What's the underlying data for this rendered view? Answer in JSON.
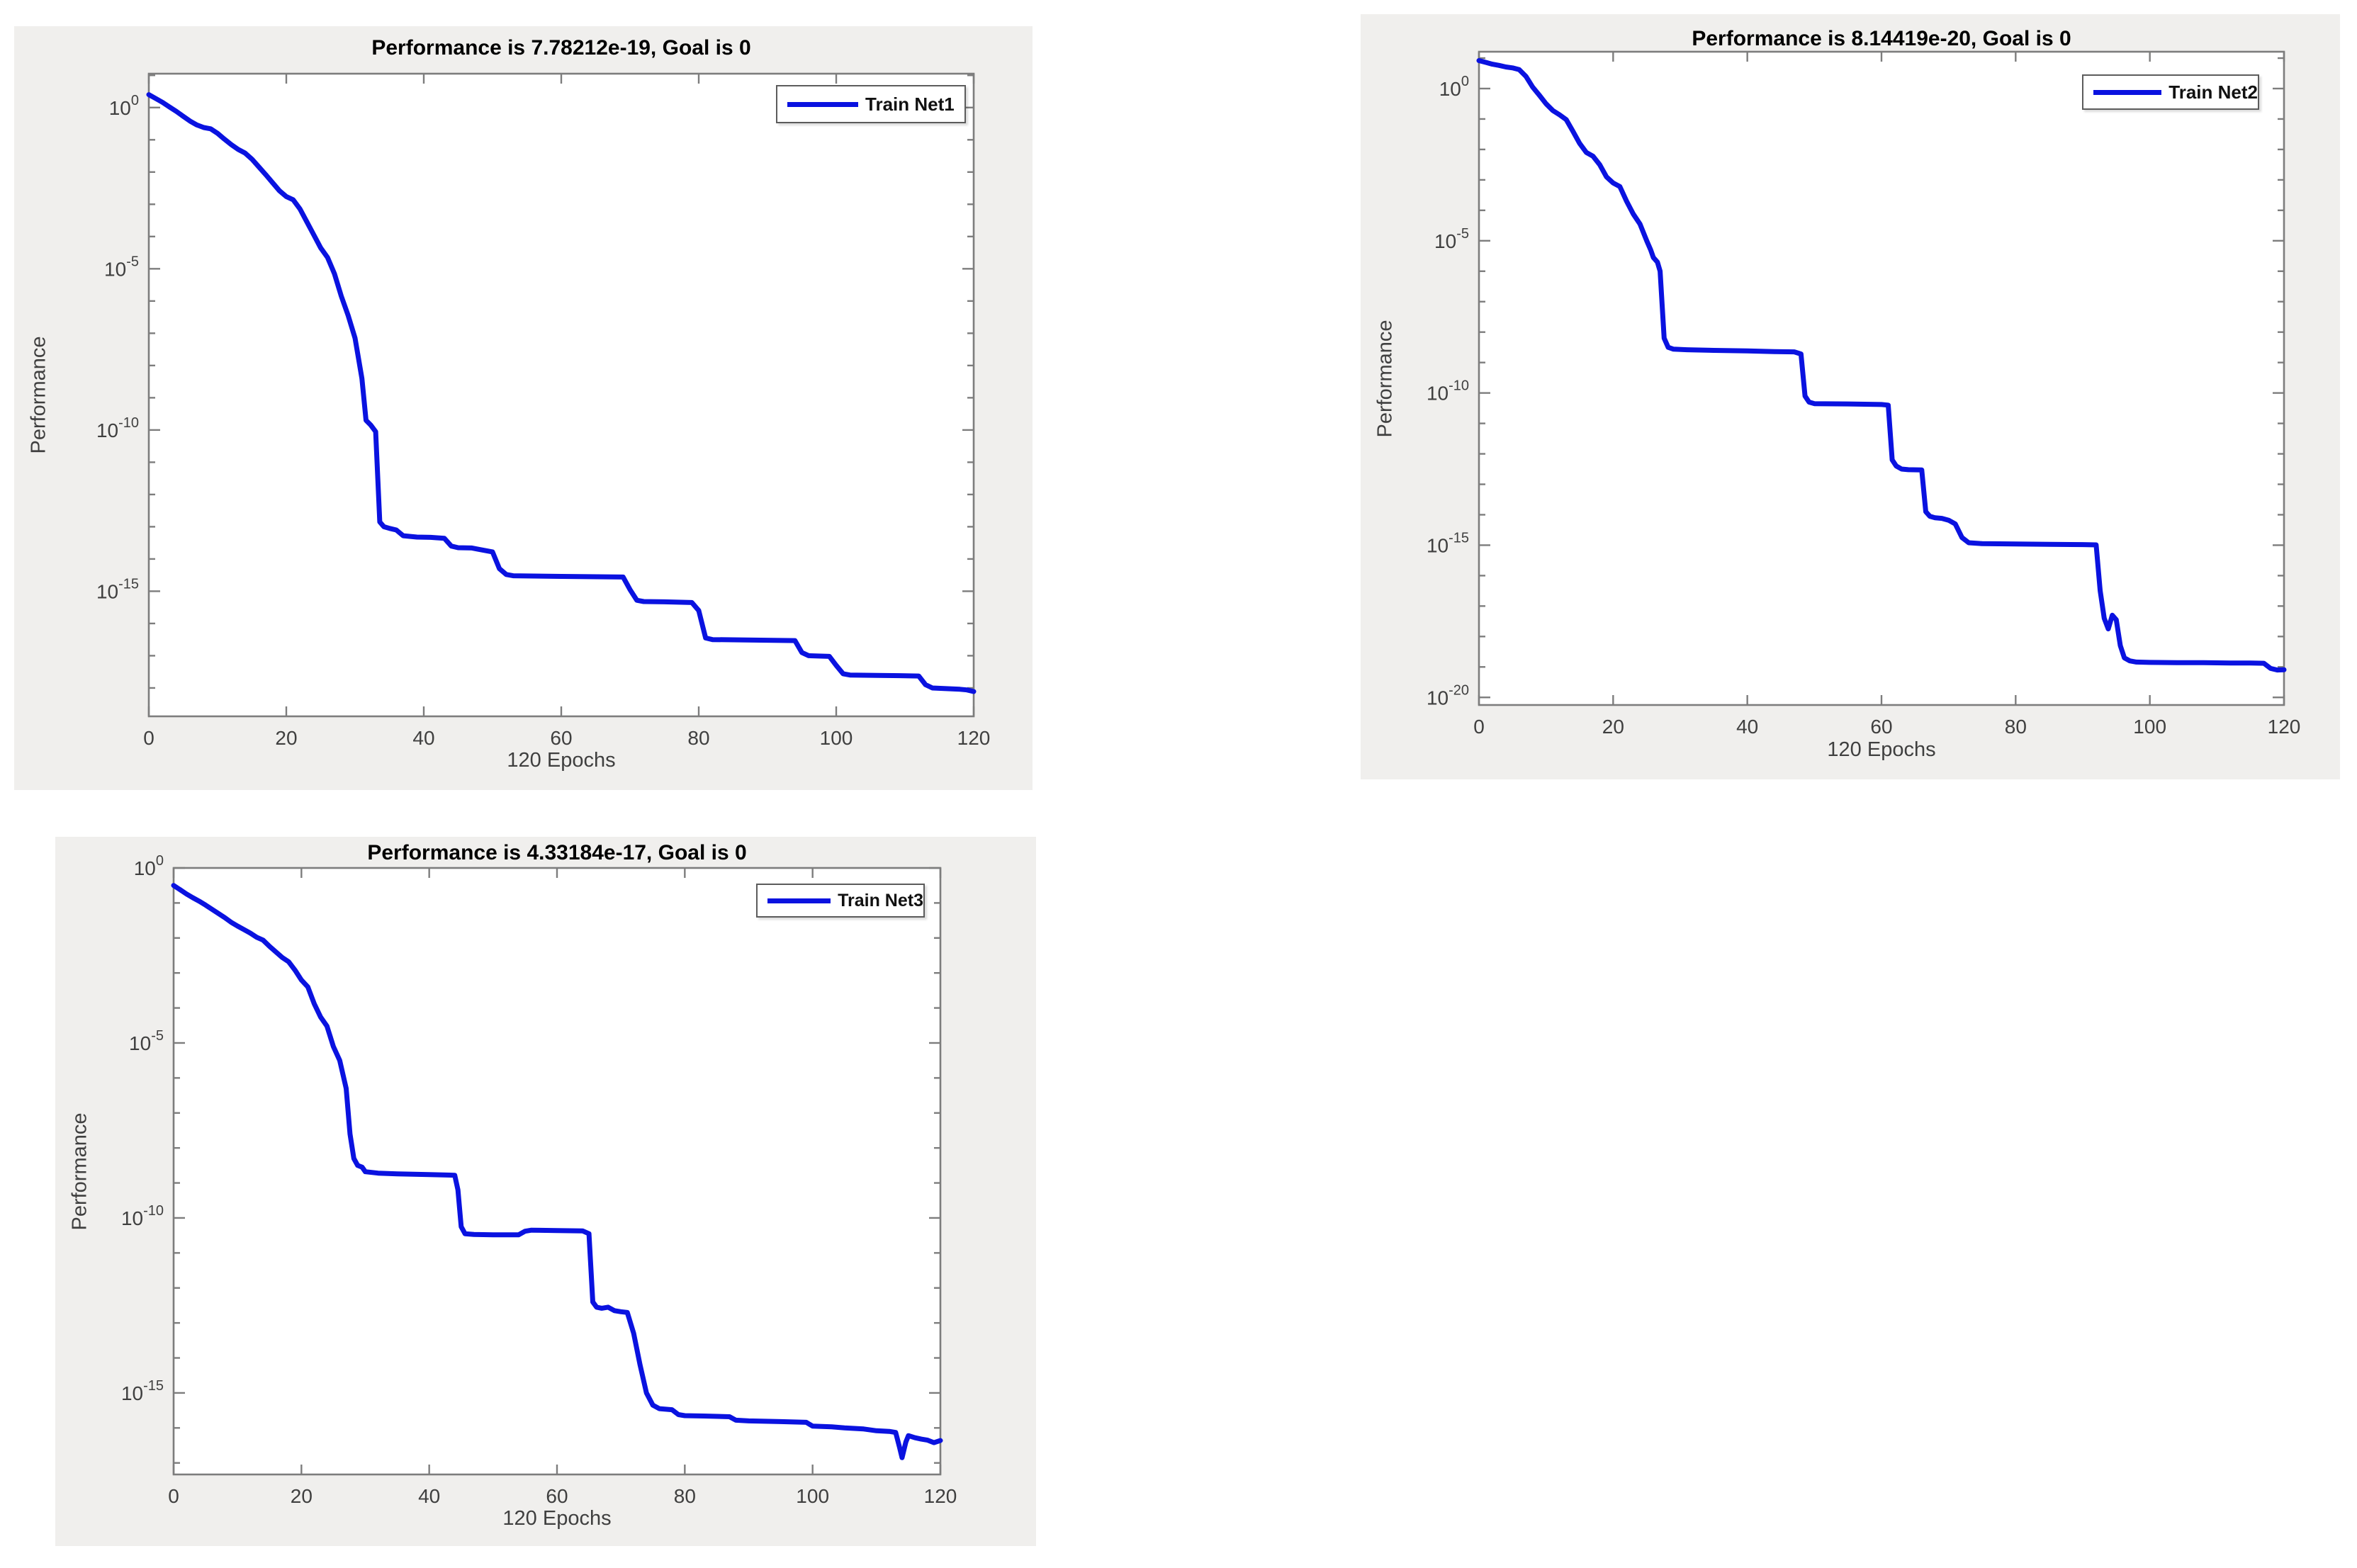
{
  "figure": {
    "background": "#ffffff",
    "panel_background": "#f0efed",
    "plot_background": "#ffffff",
    "axis_color": "#7d7d7d",
    "tick_label_color": "#3f3f3f",
    "title_color": "#000000"
  },
  "chart_data": [
    {
      "type": "line",
      "title": "Performance is 7.78212e-19, Goal is 0",
      "final_performance": "7.78212e-19",
      "goal": "0",
      "legend": "Train Net1",
      "legend_position": "top-right-inside",
      "xlabel": "120 Epochs",
      "ylabel": "Performance",
      "x_range": [
        0,
        120
      ],
      "x_ticks": [
        0,
        20,
        40,
        60,
        80,
        100,
        120
      ],
      "y_scale": "log10",
      "y_tick_exponents": [
        0,
        -5,
        -10,
        -15
      ],
      "y_top_exponent": 1.05,
      "y_bottom_exponent": -18.88,
      "grid": false,
      "line_color": "#0a12e0",
      "series_log10": [
        [
          0,
          0.4
        ],
        [
          1,
          0.28
        ],
        [
          2,
          0.16
        ],
        [
          3,
          0.02
        ],
        [
          4,
          -0.12
        ],
        [
          5,
          -0.27
        ],
        [
          6,
          -0.42
        ],
        [
          7,
          -0.54
        ],
        [
          8,
          -0.62
        ],
        [
          9,
          -0.66
        ],
        [
          10,
          -0.8
        ],
        [
          11,
          -0.98
        ],
        [
          12,
          -1.15
        ],
        [
          13,
          -1.3
        ],
        [
          14,
          -1.41
        ],
        [
          15,
          -1.6
        ],
        [
          16,
          -1.84
        ],
        [
          17,
          -2.08
        ],
        [
          18,
          -2.33
        ],
        [
          19,
          -2.58
        ],
        [
          20,
          -2.76
        ],
        [
          21,
          -2.86
        ],
        [
          22,
          -3.15
        ],
        [
          23,
          -3.55
        ],
        [
          24,
          -3.95
        ],
        [
          25,
          -4.35
        ],
        [
          26,
          -4.65
        ],
        [
          27,
          -5.15
        ],
        [
          28,
          -5.85
        ],
        [
          29,
          -6.45
        ],
        [
          30,
          -7.15
        ],
        [
          31,
          -8.4
        ],
        [
          31.6,
          -9.7
        ],
        [
          32.3,
          -9.85
        ],
        [
          33,
          -10.05
        ],
        [
          33.6,
          -12.85
        ],
        [
          34.2,
          -13.0
        ],
        [
          35,
          -13.05
        ],
        [
          36,
          -13.1
        ],
        [
          37,
          -13.28
        ],
        [
          39,
          -13.32
        ],
        [
          41,
          -13.33
        ],
        [
          43,
          -13.36
        ],
        [
          44,
          -13.6
        ],
        [
          45,
          -13.65
        ],
        [
          47,
          -13.66
        ],
        [
          48,
          -13.7
        ],
        [
          50,
          -13.78
        ],
        [
          51,
          -14.3
        ],
        [
          52,
          -14.48
        ],
        [
          53,
          -14.52
        ],
        [
          56,
          -14.53
        ],
        [
          60,
          -14.54
        ],
        [
          64,
          -14.55
        ],
        [
          69,
          -14.56
        ],
        [
          70,
          -14.95
        ],
        [
          71,
          -15.28
        ],
        [
          72,
          -15.32
        ],
        [
          75,
          -15.33
        ],
        [
          79,
          -15.35
        ],
        [
          80,
          -15.6
        ],
        [
          81,
          -16.45
        ],
        [
          82,
          -16.5
        ],
        [
          86,
          -16.51
        ],
        [
          90,
          -16.52
        ],
        [
          94,
          -16.53
        ],
        [
          95,
          -16.9
        ],
        [
          96,
          -17.0
        ],
        [
          99,
          -17.02
        ],
        [
          100,
          -17.3
        ],
        [
          101,
          -17.56
        ],
        [
          102,
          -17.6
        ],
        [
          106,
          -17.61
        ],
        [
          110,
          -17.62
        ],
        [
          112,
          -17.63
        ],
        [
          113,
          -17.9
        ],
        [
          114,
          -18.0
        ],
        [
          116,
          -18.02
        ],
        [
          118,
          -18.04
        ],
        [
          119,
          -18.06
        ],
        [
          120,
          -18.11
        ]
      ]
    },
    {
      "type": "line",
      "title": "Performance is 8.14419e-20, Goal is 0",
      "final_performance": "8.14419e-20",
      "goal": "0",
      "legend": "Train Net2",
      "legend_position": "top-right-inside",
      "xlabel": "120 Epochs",
      "ylabel": "Performance",
      "x_range": [
        0,
        120
      ],
      "x_ticks": [
        0,
        20,
        40,
        60,
        80,
        100,
        120
      ],
      "y_scale": "log10",
      "y_tick_exponents": [
        0,
        -5,
        -10,
        -15,
        -20
      ],
      "y_top_exponent": 1.21,
      "y_bottom_exponent": -20.25,
      "grid": false,
      "line_color": "#0a12e0",
      "series_log10": [
        [
          0,
          0.92
        ],
        [
          1,
          0.86
        ],
        [
          2,
          0.8
        ],
        [
          3,
          0.76
        ],
        [
          4,
          0.71
        ],
        [
          5,
          0.68
        ],
        [
          6,
          0.62
        ],
        [
          7,
          0.4
        ],
        [
          8,
          0.05
        ],
        [
          9,
          -0.22
        ],
        [
          10,
          -0.5
        ],
        [
          11,
          -0.72
        ],
        [
          12,
          -0.86
        ],
        [
          13,
          -1.02
        ],
        [
          14,
          -1.4
        ],
        [
          15,
          -1.8
        ],
        [
          16,
          -2.1
        ],
        [
          17,
          -2.22
        ],
        [
          18,
          -2.5
        ],
        [
          19,
          -2.9
        ],
        [
          20,
          -3.1
        ],
        [
          21,
          -3.22
        ],
        [
          22,
          -3.7
        ],
        [
          23,
          -4.12
        ],
        [
          24,
          -4.45
        ],
        [
          25,
          -5.0
        ],
        [
          25.6,
          -5.3
        ],
        [
          26,
          -5.55
        ],
        [
          26.6,
          -5.7
        ],
        [
          27,
          -6.0
        ],
        [
          27.6,
          -8.2
        ],
        [
          28.2,
          -8.5
        ],
        [
          29,
          -8.56
        ],
        [
          31,
          -8.58
        ],
        [
          35,
          -8.6
        ],
        [
          40,
          -8.62
        ],
        [
          44,
          -8.64
        ],
        [
          47,
          -8.65
        ],
        [
          48,
          -8.72
        ],
        [
          48.6,
          -10.1
        ],
        [
          49.2,
          -10.3
        ],
        [
          50,
          -10.35
        ],
        [
          55,
          -10.36
        ],
        [
          60,
          -10.38
        ],
        [
          61,
          -10.4
        ],
        [
          61.6,
          -12.2
        ],
        [
          62.2,
          -12.4
        ],
        [
          63,
          -12.5
        ],
        [
          64,
          -12.52
        ],
        [
          66,
          -12.53
        ],
        [
          66.6,
          -13.9
        ],
        [
          67.2,
          -14.05
        ],
        [
          68,
          -14.1
        ],
        [
          69,
          -14.12
        ],
        [
          70,
          -14.18
        ],
        [
          71,
          -14.3
        ],
        [
          72,
          -14.75
        ],
        [
          73,
          -14.92
        ],
        [
          75,
          -14.95
        ],
        [
          80,
          -14.96
        ],
        [
          85,
          -14.97
        ],
        [
          90,
          -14.98
        ],
        [
          92,
          -14.99
        ],
        [
          92.6,
          -16.5
        ],
        [
          93.2,
          -17.4
        ],
        [
          93.8,
          -17.75
        ],
        [
          94.4,
          -17.3
        ],
        [
          95,
          -17.45
        ],
        [
          95.6,
          -18.3
        ],
        [
          96.2,
          -18.7
        ],
        [
          97,
          -18.8
        ],
        [
          98,
          -18.84
        ],
        [
          100,
          -18.85
        ],
        [
          104,
          -18.86
        ],
        [
          108,
          -18.86
        ],
        [
          112,
          -18.87
        ],
        [
          115,
          -18.87
        ],
        [
          117,
          -18.88
        ],
        [
          118,
          -19.05
        ],
        [
          119,
          -19.1
        ],
        [
          120,
          -19.09
        ]
      ]
    },
    {
      "type": "line",
      "title": "Performance is 4.33184e-17, Goal is 0",
      "final_performance": "4.33184e-17",
      "goal": "0",
      "legend": "Train Net3",
      "legend_position": "top-right-inside",
      "xlabel": "120 Epochs",
      "ylabel": "Performance",
      "x_range": [
        0,
        120
      ],
      "x_ticks": [
        0,
        20,
        40,
        60,
        80,
        100,
        120
      ],
      "y_scale": "log10",
      "y_tick_exponents": [
        0,
        -5,
        -10,
        -15
      ],
      "y_top_exponent": 0.0,
      "y_bottom_exponent": -17.33,
      "grid": false,
      "line_color": "#0a12e0",
      "series_log10": [
        [
          0,
          -0.5
        ],
        [
          1,
          -0.62
        ],
        [
          2,
          -0.74
        ],
        [
          3,
          -0.85
        ],
        [
          4,
          -0.95
        ],
        [
          5,
          -1.06
        ],
        [
          6,
          -1.18
        ],
        [
          7,
          -1.3
        ],
        [
          8,
          -1.42
        ],
        [
          9,
          -1.55
        ],
        [
          10,
          -1.66
        ],
        [
          11,
          -1.76
        ],
        [
          12,
          -1.86
        ],
        [
          13,
          -1.98
        ],
        [
          14,
          -2.06
        ],
        [
          15,
          -2.24
        ],
        [
          16,
          -2.4
        ],
        [
          17,
          -2.56
        ],
        [
          18,
          -2.68
        ],
        [
          19,
          -2.92
        ],
        [
          20,
          -3.2
        ],
        [
          21,
          -3.4
        ],
        [
          22,
          -3.88
        ],
        [
          23,
          -4.26
        ],
        [
          24,
          -4.52
        ],
        [
          25,
          -5.1
        ],
        [
          26,
          -5.5
        ],
        [
          27,
          -6.3
        ],
        [
          27.6,
          -7.6
        ],
        [
          28.2,
          -8.3
        ],
        [
          28.8,
          -8.5
        ],
        [
          29.5,
          -8.55
        ],
        [
          30,
          -8.68
        ],
        [
          32,
          -8.72
        ],
        [
          35,
          -8.74
        ],
        [
          40,
          -8.76
        ],
        [
          44,
          -8.78
        ],
        [
          44.5,
          -9.2
        ],
        [
          45,
          -10.25
        ],
        [
          45.6,
          -10.45
        ],
        [
          47,
          -10.47
        ],
        [
          50,
          -10.48
        ],
        [
          54,
          -10.48
        ],
        [
          55,
          -10.38
        ],
        [
          56,
          -10.35
        ],
        [
          60,
          -10.36
        ],
        [
          64,
          -10.37
        ],
        [
          65,
          -10.45
        ],
        [
          65.6,
          -12.4
        ],
        [
          66.2,
          -12.55
        ],
        [
          67,
          -12.58
        ],
        [
          68,
          -12.55
        ],
        [
          69,
          -12.65
        ],
        [
          70,
          -12.68
        ],
        [
          71,
          -12.7
        ],
        [
          72,
          -13.3
        ],
        [
          73,
          -14.2
        ],
        [
          74,
          -15.0
        ],
        [
          75,
          -15.35
        ],
        [
          76,
          -15.45
        ],
        [
          78,
          -15.48
        ],
        [
          79,
          -15.62
        ],
        [
          80,
          -15.65
        ],
        [
          83,
          -15.66
        ],
        [
          87,
          -15.68
        ],
        [
          88,
          -15.78
        ],
        [
          90,
          -15.8
        ],
        [
          95,
          -15.82
        ],
        [
          99,
          -15.84
        ],
        [
          100,
          -15.95
        ],
        [
          103,
          -15.97
        ],
        [
          105,
          -16.0
        ],
        [
          108,
          -16.03
        ],
        [
          110,
          -16.08
        ],
        [
          112,
          -16.1
        ],
        [
          113,
          -16.13
        ],
        [
          113.6,
          -16.55
        ],
        [
          114,
          -16.85
        ],
        [
          114.6,
          -16.4
        ],
        [
          115,
          -16.22
        ],
        [
          116,
          -16.28
        ],
        [
          117,
          -16.32
        ],
        [
          118,
          -16.35
        ],
        [
          119,
          -16.42
        ],
        [
          120,
          -16.36
        ]
      ]
    }
  ]
}
